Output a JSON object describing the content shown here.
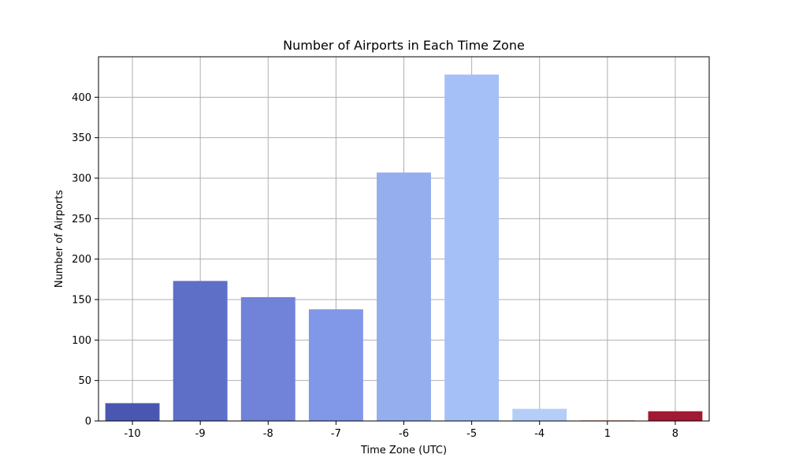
{
  "chart_data": {
    "type": "bar",
    "title": "Number of Airports in Each Time Zone",
    "xlabel": "Time Zone (UTC)",
    "ylabel": "Number of Airports",
    "categories": [
      "-10",
      "-9",
      "-8",
      "-7",
      "-6",
      "-5",
      "-4",
      "1",
      "8"
    ],
    "values": [
      22,
      173,
      153,
      138,
      307,
      428,
      15,
      1,
      12
    ],
    "colors": [
      "#4a57b1",
      "#5e6fc8",
      "#7083d8",
      "#8197e7",
      "#94aeee",
      "#a5c0f6",
      "#b5cef8",
      "#e8c4b0",
      "#a11932"
    ],
    "ylim": [
      0,
      450
    ],
    "yticks": [
      0,
      50,
      100,
      150,
      200,
      250,
      300,
      350,
      400
    ],
    "grid": true,
    "legend": "none"
  }
}
